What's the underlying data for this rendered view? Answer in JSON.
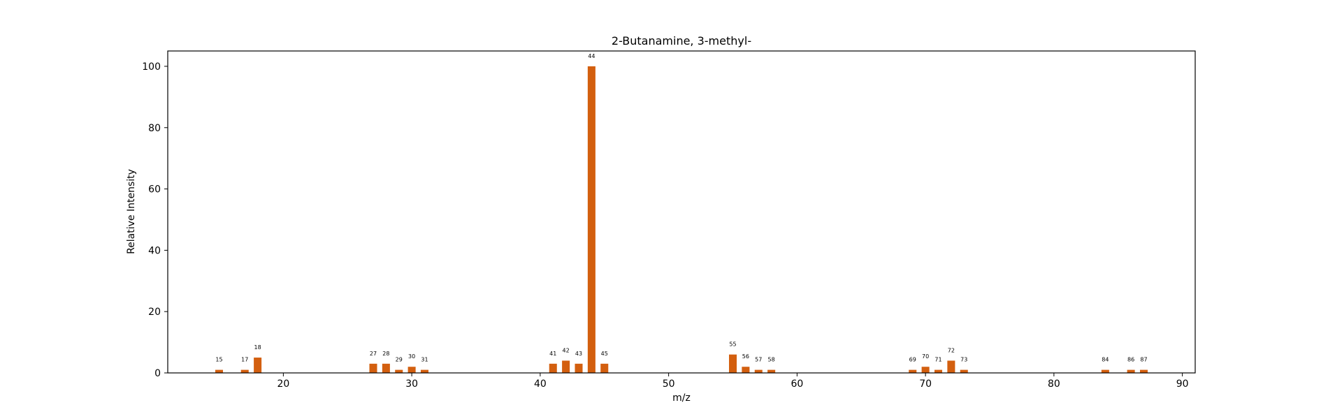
{
  "chart_data": {
    "type": "bar",
    "title": "2-Butanamine, 3-methyl-",
    "xlabel": "m/z",
    "ylabel": "Relative Intensity",
    "xlim": [
      11,
      91
    ],
    "ylim": [
      0,
      105
    ],
    "xticks": [
      20,
      30,
      40,
      50,
      60,
      70,
      80,
      90
    ],
    "yticks": [
      0,
      20,
      40,
      60,
      80,
      100
    ],
    "grid": false,
    "bar_color": "#d35f0f",
    "series": [
      {
        "x": [
          15,
          17,
          18,
          27,
          28,
          29,
          30,
          31,
          41,
          42,
          43,
          44,
          45,
          55,
          56,
          57,
          58,
          69,
          70,
          71,
          72,
          73,
          84,
          86,
          87
        ],
        "values": [
          1,
          1,
          5,
          3,
          3,
          1,
          2,
          1,
          3,
          4,
          3,
          100,
          3,
          6,
          2,
          1,
          1,
          1,
          2,
          1,
          4,
          1,
          1,
          1,
          1
        ],
        "labels": [
          "15",
          "17",
          "18",
          "27",
          "28",
          "29",
          "30",
          "31",
          "41",
          "42",
          "43",
          "44",
          "45",
          "55",
          "56",
          "57",
          "58",
          "69",
          "70",
          "71",
          "72",
          "73",
          "84",
          "86",
          "87"
        ]
      }
    ]
  }
}
